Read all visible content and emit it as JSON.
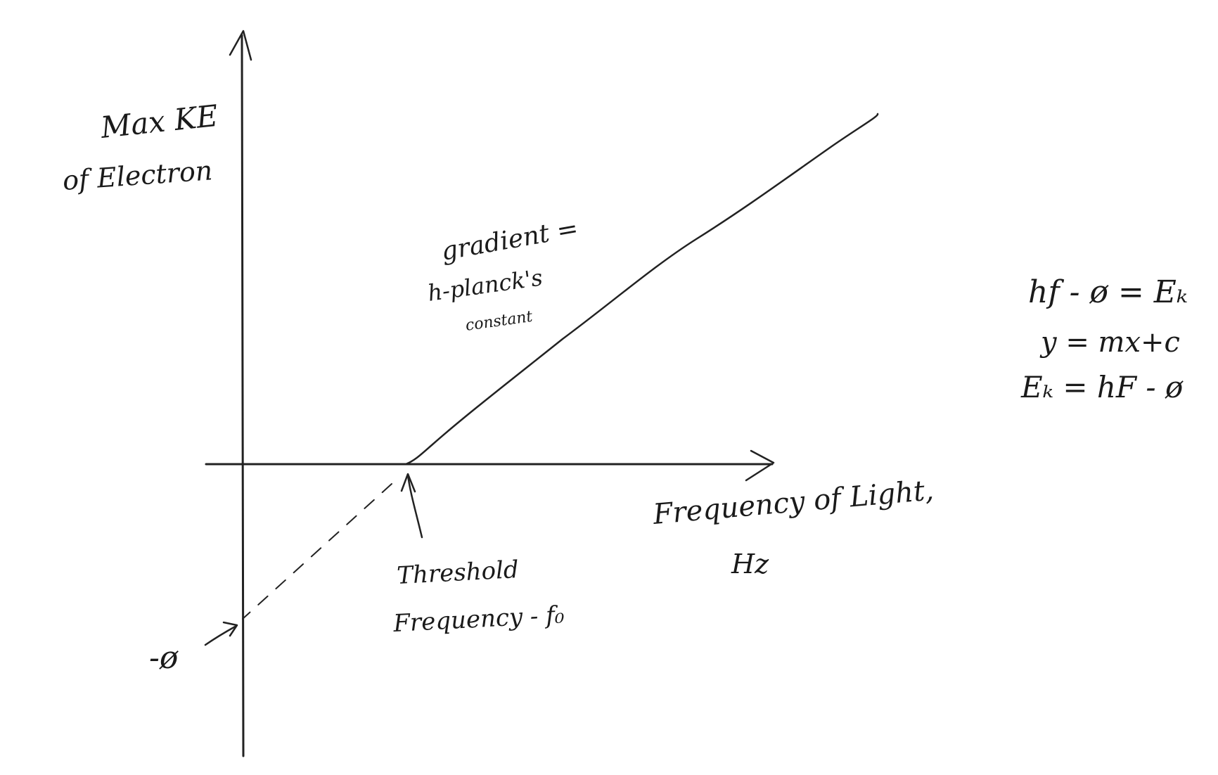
{
  "colors": {
    "ink": "#222222",
    "paper": "#ffffff"
  },
  "labels": {
    "y_axis": [
      "Max KE",
      "of Electron"
    ],
    "x_axis": [
      "Frequency of Light,",
      "Hz"
    ],
    "gradient_note": [
      "gradient =",
      "h-planck's",
      "constant"
    ],
    "threshold_note": [
      "Threshold",
      "Frequency - f₀"
    ],
    "intercept_label": "-ø"
  },
  "equations": [
    "hf - ø = Eₖ",
    "y = mx+c",
    "Eₖ = hF - ø"
  ]
}
